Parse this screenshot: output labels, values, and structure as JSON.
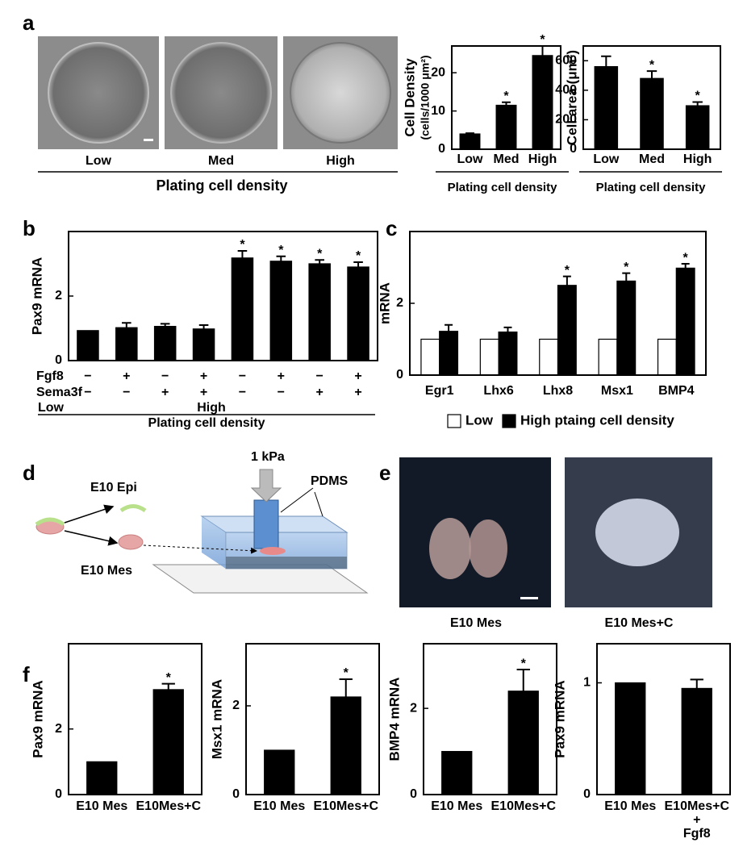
{
  "panel_labels": [
    "a",
    "b",
    "c",
    "d",
    "e",
    "f"
  ],
  "panel_a_images": {
    "labels": [
      "Low",
      "Med",
      "High"
    ],
    "xlabel": "Plating cell density"
  },
  "panel_d": {
    "epi": "E10 Epi",
    "mes": "E10 Mes",
    "pressure": "1 kPa",
    "material": "PDMS"
  },
  "panel_e": {
    "labels": [
      "E10 Mes",
      "E10 Mes+C"
    ]
  },
  "chart_data": [
    {
      "type": "bar",
      "ylabel": "Cell Density",
      "ylabel2": "(cells/1000 μm²)",
      "xlabel": "Plating cell density",
      "categories": [
        "Low",
        "Med",
        "High"
      ],
      "series": [
        {
          "color": "#000000",
          "values": [
            4,
            11.5,
            24.5
          ],
          "errors": [
            0.2,
            0.8,
            2.5
          ],
          "significant": [
            false,
            true,
            true
          ]
        }
      ],
      "significance_marker": "*",
      "ylim": [
        0,
        27
      ],
      "yticks": [
        0,
        10,
        20
      ]
    },
    {
      "type": "bar",
      "ylabel": "Cell area (μm²)",
      "xlabel": "Plating cell density",
      "categories": [
        "Low",
        "Med",
        "High"
      ],
      "series": [
        {
          "color": "#000000",
          "values": [
            560,
            480,
            295
          ],
          "errors": [
            70,
            50,
            25
          ],
          "significant": [
            false,
            true,
            true
          ]
        }
      ],
      "significance_marker": "*",
      "ylim": [
        0,
        700
      ],
      "yticks": [
        0,
        200,
        400,
        600
      ]
    },
    {
      "type": "bar",
      "ylabel": "Pax9 mRNA",
      "xlabel": "Plating cell density",
      "factor_rows": [
        {
          "name": "Fgf8",
          "values": [
            "−",
            "+",
            "−",
            "+",
            "−",
            "+",
            "−",
            "+"
          ]
        },
        {
          "name": "Sema3f",
          "values": [
            "−",
            "−",
            "+",
            "+",
            "−",
            "−",
            "+",
            "+"
          ]
        }
      ],
      "groups": [
        "Low",
        "High"
      ],
      "series": [
        {
          "color": "#000000",
          "values": [
            0.93,
            1.02,
            1.06,
            0.98,
            3.18,
            3.08,
            3.0,
            2.9
          ],
          "errors": [
            0,
            0.15,
            0.08,
            0.12,
            0.22,
            0.15,
            0.12,
            0.15
          ],
          "significant": [
            false,
            false,
            false,
            false,
            true,
            true,
            true,
            true
          ]
        }
      ],
      "significance_marker": "*",
      "ylim": [
        0,
        4
      ],
      "yticks": [
        0,
        2
      ]
    },
    {
      "type": "bar",
      "ylabel": "mRNA",
      "categories": [
        "Egr1",
        "Lhx6",
        "Lhx8",
        "Msx1",
        "BMP4"
      ],
      "series": [
        {
          "name": "Low",
          "color": "#ffffff",
          "values": [
            1,
            1,
            1,
            1,
            1
          ]
        },
        {
          "name": "High ptaing cell density",
          "color": "#000000",
          "values": [
            1.22,
            1.2,
            2.5,
            2.62,
            2.98
          ],
          "errors": [
            0.18,
            0.13,
            0.25,
            0.22,
            0.12
          ],
          "significant": [
            false,
            false,
            true,
            true,
            true
          ]
        }
      ],
      "significance_marker": "*",
      "legend": "bottom",
      "ylim": [
        0,
        4
      ],
      "yticks": [
        0,
        2
      ]
    },
    {
      "type": "bar",
      "ylabel": "Pax9 mRNA",
      "categories": [
        "E10 Mes",
        "E10Mes+C"
      ],
      "series": [
        {
          "color": "#000000",
          "values": [
            1,
            3.2
          ],
          "errors": [
            0,
            0.18
          ],
          "significant": [
            false,
            true
          ]
        }
      ],
      "significance_marker": "*",
      "ylim": [
        0,
        4.6
      ],
      "yticks": [
        0,
        2
      ]
    },
    {
      "type": "bar",
      "ylabel": "Msx1 mRNA",
      "categories": [
        "E10 Mes",
        "E10Mes+C"
      ],
      "series": [
        {
          "color": "#000000",
          "values": [
            1,
            2.2
          ],
          "errors": [
            0,
            0.4
          ],
          "significant": [
            false,
            true
          ]
        }
      ],
      "significance_marker": "*",
      "ylim": [
        0,
        3.4
      ],
      "yticks": [
        0,
        2
      ]
    },
    {
      "type": "bar",
      "ylabel": "BMP4 mRNA",
      "categories": [
        "E10 Mes",
        "E10Mes+C"
      ],
      "series": [
        {
          "color": "#000000",
          "values": [
            1,
            2.4
          ],
          "errors": [
            0,
            0.5
          ],
          "significant": [
            false,
            true
          ]
        }
      ],
      "significance_marker": "*",
      "ylim": [
        0,
        3.5
      ],
      "yticks": [
        0,
        2
      ]
    },
    {
      "type": "bar",
      "ylabel": "Pax9 mRNA",
      "categories": [
        "E10 Mes",
        "E10Mes+C\n+\nFgf8"
      ],
      "series": [
        {
          "color": "#000000",
          "values": [
            1,
            0.95
          ],
          "errors": [
            0,
            0.08
          ],
          "significant": [
            false,
            false
          ]
        }
      ],
      "significance_marker": "*",
      "ylim": [
        0,
        1.35
      ],
      "yticks": [
        0,
        1
      ]
    }
  ]
}
